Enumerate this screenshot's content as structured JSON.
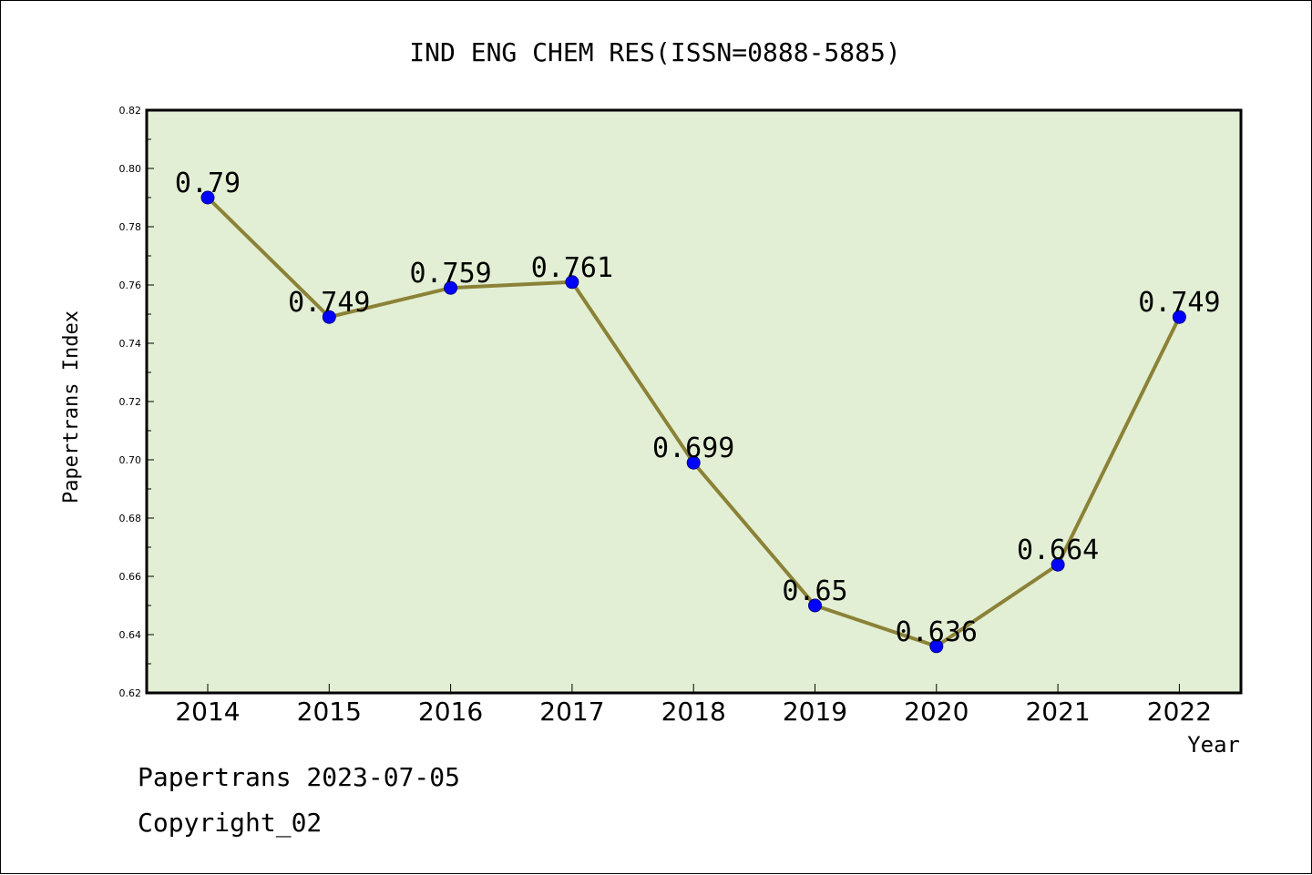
{
  "chart_data": {
    "type": "line",
    "title": "IND ENG CHEM RES(ISSN=0888-5885)",
    "xlabel": "Year",
    "ylabel": "Papertrans Index",
    "categories": [
      "2014",
      "2015",
      "2016",
      "2017",
      "2018",
      "2019",
      "2020",
      "2021",
      "2022"
    ],
    "series": [
      {
        "values": [
          0.79,
          0.749,
          0.759,
          0.761,
          0.699,
          0.65,
          0.636,
          0.664,
          0.749
        ],
        "data_labels": [
          "0.79",
          "0.749",
          "0.759",
          "0.761",
          "0.699",
          "0.65",
          "0.636",
          "0.664",
          "0.749"
        ]
      }
    ],
    "ylim": [
      0.62,
      0.82
    ],
    "yticks": [
      "0.62",
      "0.64",
      "0.66",
      "0.68",
      "0.70",
      "0.72",
      "0.74",
      "0.76",
      "0.78",
      "0.80",
      "0.82"
    ],
    "grid": false,
    "legend": "none",
    "colors": {
      "plot_background": "#e2efd4",
      "line": "#8b8237",
      "marker": "#0000ff"
    }
  },
  "footer": {
    "line1": "Papertrans 2023-07-05",
    "line2": "Copyright_02"
  }
}
